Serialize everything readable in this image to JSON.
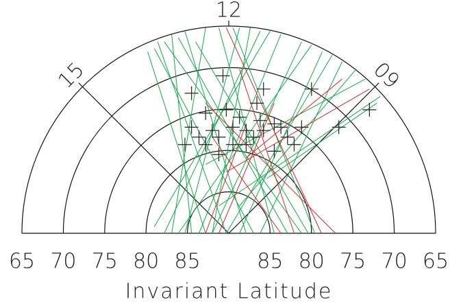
{
  "chart_data": {
    "type": "polar-segments",
    "x_label": "Invariant Latitude",
    "xlim": [
      -25,
      25
    ],
    "ylim": [
      0,
      25
    ],
    "xticks": [
      {
        "value": -25,
        "label": "65"
      },
      {
        "value": -20,
        "label": "70"
      },
      {
        "value": -15,
        "label": "75"
      },
      {
        "value": -10,
        "label": "80"
      },
      {
        "value": -5,
        "label": "85"
      },
      {
        "value": 5,
        "label": "85"
      },
      {
        "value": 10,
        "label": "80"
      },
      {
        "value": 15,
        "label": "75"
      },
      {
        "value": 20,
        "label": "70"
      },
      {
        "value": 25,
        "label": "65"
      }
    ],
    "hour_ticks": [
      {
        "value": 12,
        "label": "12"
      },
      {
        "value": 15,
        "label": "15"
      },
      {
        "value": 9,
        "label": "09"
      }
    ],
    "series": [
      {
        "color": "#11a84a",
        "lines": [
          {
            "x": [
              -9.8,
              -2.8
            ],
            "y": [
              21.9,
              0
            ]
          },
          {
            "x": [
              -8.6,
              -0.3
            ],
            "y": [
              23.1,
              0
            ]
          },
          {
            "x": [
              -6.9,
              -4.5
            ],
            "y": [
              24.0,
              0
            ]
          },
          {
            "x": [
              -5.3,
              2.1
            ],
            "y": [
              24.4,
              0
            ]
          },
          {
            "x": [
              -2.8,
              -6.9
            ],
            "y": [
              24.8,
              0
            ]
          },
          {
            "x": [
              -1.2,
              5.5
            ],
            "y": [
              24.8,
              0
            ]
          },
          {
            "x": [
              1.3,
              -5.3
            ],
            "y": [
              24.8,
              0
            ]
          },
          {
            "x": [
              3.8,
              -7.8
            ],
            "y": [
              24.4,
              0
            ]
          },
          {
            "x": [
              6.3,
              -3.6
            ],
            "y": [
              24.0,
              0
            ]
          },
          {
            "x": [
              8.8,
              -2.0
            ],
            "y": [
              23.1,
              0
            ]
          },
          {
            "x": [
              11.3,
              1.3
            ],
            "y": [
              21.9,
              0
            ]
          },
          {
            "x": [
              13.7,
              3.8
            ],
            "y": [
              20.7,
              0
            ]
          },
          {
            "x": [
              16.5,
              -2.8
            ],
            "y": [
              18.6,
              8.3
            ]
          },
          {
            "x": [
              18.3,
              -1.2
            ],
            "y": [
              16.5,
              3.3
            ]
          },
          {
            "x": [
              17.9,
              4.6
            ],
            "y": [
              15.7,
              6.6
            ]
          },
          {
            "x": [
              -4.0,
              9.6
            ],
            "y": [
              23.1,
              0
            ]
          },
          {
            "x": [
              -6.1,
              7.1
            ],
            "y": [
              23.6,
              0
            ]
          },
          {
            "x": [
              0.5,
              10.4
            ],
            "y": [
              24.8,
              0
            ]
          },
          {
            "x": [
              5.0,
              -9.0
            ],
            "y": [
              24.4,
              0.8
            ]
          },
          {
            "x": [
              -9.0,
              3.0
            ],
            "y": [
              22.3,
              0
            ]
          },
          {
            "x": [
              10.0,
              -6.1
            ],
            "y": [
              22.7,
              0
            ]
          },
          {
            "x": [
              12.5,
              -0.3
            ],
            "y": [
              21.5,
              0
            ]
          },
          {
            "x": [
              -7.8,
              8.8
            ],
            "y": [
              23.1,
              0
            ]
          },
          {
            "x": [
              2.6,
              -2.0
            ],
            "y": [
              24.8,
              0
            ]
          },
          {
            "x": [
              15.4,
              1.3
            ],
            "y": [
              19.8,
              3.3
            ]
          }
        ]
      },
      {
        "color": "#d8232a",
        "lines": [
          {
            "x": [
              -0.3,
              11.2
            ],
            "y": [
              24.8,
              0
            ]
          },
          {
            "x": [
              1.3,
              7.9
            ],
            "y": [
              19.8,
              0
            ]
          },
          {
            "x": [
              -2.8,
              12.9
            ],
            "y": [
              15.7,
              0
            ]
          },
          {
            "x": [
              17.0,
              -0.3
            ],
            "y": [
              17.4,
              7.4
            ]
          },
          {
            "x": [
              2.1,
              -2.8
            ],
            "y": [
              13.2,
              0
            ]
          },
          {
            "x": [
              5.5,
              -1.2
            ],
            "y": [
              15.7,
              0
            ]
          },
          {
            "x": [
              -2.0,
              6.3
            ],
            "y": [
              11.6,
              0
            ]
          },
          {
            "x": [
              13.7,
              2.1
            ],
            "y": [
              18.6,
              9.1
            ]
          }
        ]
      }
    ],
    "points": {
      "color": "#222222",
      "x": [
        -4.5,
        -0.7,
        4.2,
        10.0,
        17.0,
        13.3,
        -5.3,
        -4.5,
        -2.8,
        -2.0,
        -1.2,
        -3.6,
        0.5,
        1.3,
        2.1,
        3.0,
        3.8,
        5.5,
        6.3,
        7.1,
        7.9,
        8.8,
        0.5,
        -1.2,
        2.1,
        -2.8,
        -0.3,
        5.5,
        3.4,
        4.2
      ],
      "y": [
        16.9,
        19.0,
        17.4,
        17.4,
        14.9,
        12.8,
        10.7,
        12.8,
        14.5,
        12.4,
        11.6,
        11.6,
        12.8,
        14.0,
        12.4,
        11.6,
        13.6,
        13.2,
        12.8,
        11.6,
        10.7,
        12.8,
        10.7,
        9.5,
        10.7,
        10.7,
        14.9,
        9.9,
        15.7,
        12.4
      ]
    }
  }
}
